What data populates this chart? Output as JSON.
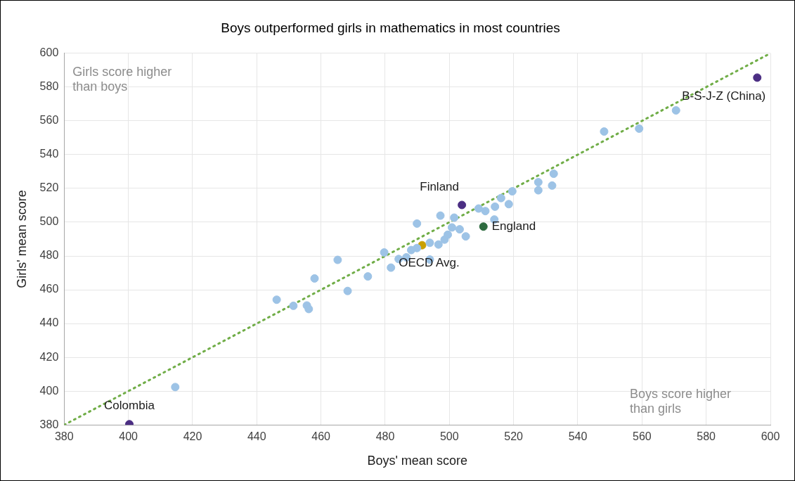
{
  "chart_data": {
    "type": "scatter",
    "title": "Boys outperformed girls in mathematics in most countries",
    "xlabel": "Boys' mean score",
    "ylabel": "Girls' mean score",
    "xlim": [
      380,
      600
    ],
    "xticks": [
      380,
      400,
      420,
      440,
      460,
      480,
      500,
      520,
      540,
      560,
      580,
      600
    ],
    "ylim": [
      380,
      600
    ],
    "yticks": [
      380,
      400,
      420,
      440,
      460,
      480,
      500,
      520,
      540,
      560,
      580,
      600
    ],
    "grid": true,
    "legend": false,
    "marker": "circle",
    "annotations": [
      "Girls score higher than boys",
      "Boys score higher than girls"
    ],
    "series": [
      {
        "type": "line",
        "color": "#70ad47",
        "line_style": "dotted",
        "marker": "none",
        "x": [
          380,
          600
        ],
        "values": [
          380,
          600
        ]
      },
      {
        "color": "#9dc3e6",
        "x": [
          414.6,
          446.2,
          451.4,
          455.6,
          456.2,
          458.0,
          465.2,
          468.3,
          474.6,
          479.7,
          481.8,
          484.2,
          486.6,
          488.1,
          489.9,
          489.9,
          493.9,
          493.9,
          496.6,
          497.2,
          498.5,
          499.5,
          500.8,
          501.5,
          503.2,
          505.1,
          509.1,
          511.2,
          514.0,
          514.2,
          516.1,
          518.5,
          519.6,
          527.7,
          527.7,
          532.5,
          532.0,
          548.2,
          559.1,
          570.6
        ],
        "values": [
          402.4,
          454.1,
          450.5,
          450.7,
          448.6,
          466.7,
          477.7,
          459.3,
          467.9,
          482.1,
          473.1,
          478.2,
          479.2,
          483.5,
          484.7,
          499.2,
          487.8,
          477.9,
          486.8,
          503.9,
          489.7,
          492.6,
          496.9,
          502.7,
          495.8,
          491.6,
          508.1,
          506.6,
          501.6,
          509.2,
          514.3,
          510.7,
          518.3,
          523.7,
          518.9,
          528.7,
          521.7,
          553.7,
          555.4,
          566.2
        ]
      },
      {
        "name": "B-S-J-Z (China)",
        "color": "#4b2e83",
        "x": [
          595.9
        ],
        "values": [
          585.6
        ]
      },
      {
        "name": "Finland",
        "color": "#4b2e83",
        "x": [
          503.9
        ],
        "values": [
          510.2
        ]
      },
      {
        "name": "England",
        "color": "#2e6b3f",
        "x": [
          510.6
        ],
        "values": [
          497.4
        ]
      },
      {
        "name": "OECD Avg.",
        "color": "#c9a000",
        "x": [
          491.5
        ],
        "values": [
          486.4
        ]
      },
      {
        "name": "Colombia",
        "color": "#4b2e83",
        "x": [
          400.3
        ],
        "values": [
          380.4
        ]
      }
    ]
  }
}
